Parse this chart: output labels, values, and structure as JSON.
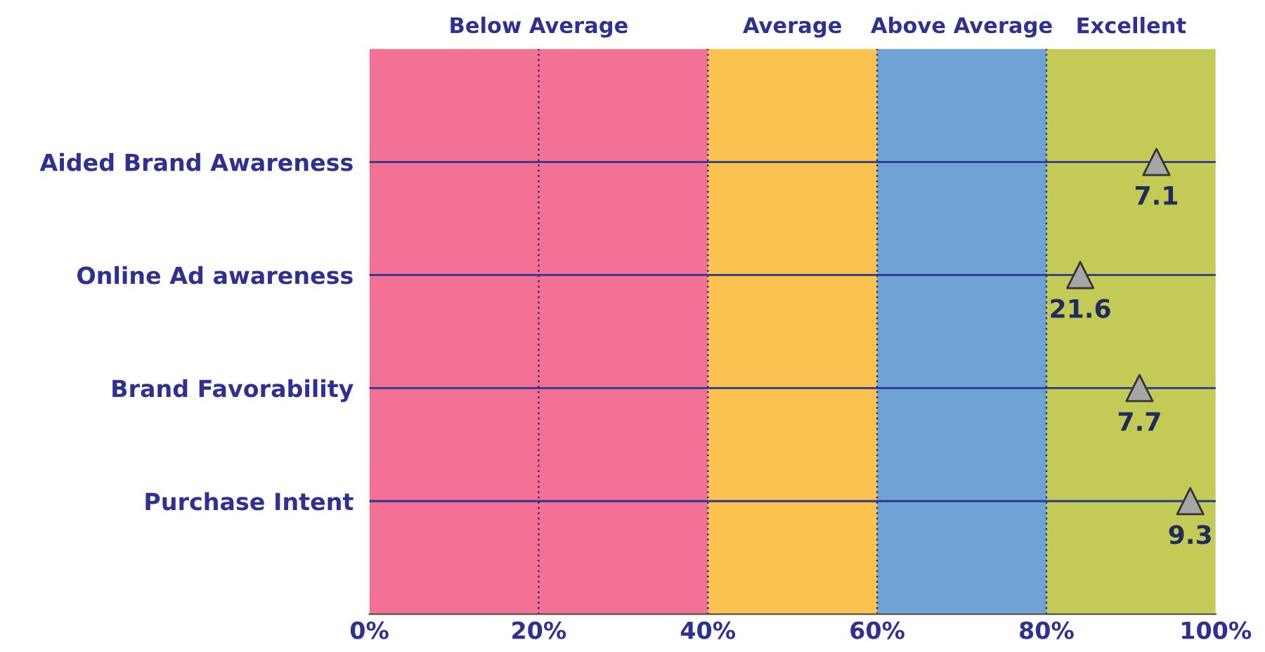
{
  "chart_data": {
    "type": "scatter",
    "orientation": "horizontal",
    "categories": [
      "Aided Brand Awareness",
      "Online Ad awareness",
      "Brand Favorability",
      "Purchase Intent"
    ],
    "values": [
      93,
      84,
      91,
      97
    ],
    "annotations": [
      {
        "text": "7.1",
        "x": 93,
        "y": "Aided Brand Awareness"
      },
      {
        "text": "21.6",
        "x": 84,
        "y": "Online Ad awareness"
      },
      {
        "text": "7.7",
        "x": 91,
        "y": "Brand Favorability"
      },
      {
        "text": "9.3",
        "x": 97,
        "y": "Purchase Intent"
      }
    ],
    "color": "#a6a6a6",
    "marker": "triangle",
    "xlim": [
      0,
      100
    ],
    "xticks": [
      {
        "value": 0,
        "label": "0%"
      },
      {
        "value": 20,
        "label": "20%"
      },
      {
        "value": 40,
        "label": "40%"
      },
      {
        "value": 60,
        "label": "60%"
      },
      {
        "value": 80,
        "label": "80%"
      },
      {
        "value": 100,
        "label": "100%"
      }
    ],
    "grid": true,
    "bands": [
      {
        "axis": "x",
        "from": 0,
        "to": 40,
        "label": "Below Average",
        "color": "#f47196"
      },
      {
        "axis": "x",
        "from": 40,
        "to": 60,
        "label": "Average",
        "color": "#fbc24f"
      },
      {
        "axis": "x",
        "from": 60,
        "to": 80,
        "label": "Above Average",
        "color": "#6fa3d6"
      },
      {
        "axis": "x",
        "from": 80,
        "to": 100,
        "label": "Excellent",
        "color": "#c3ca55"
      }
    ]
  }
}
